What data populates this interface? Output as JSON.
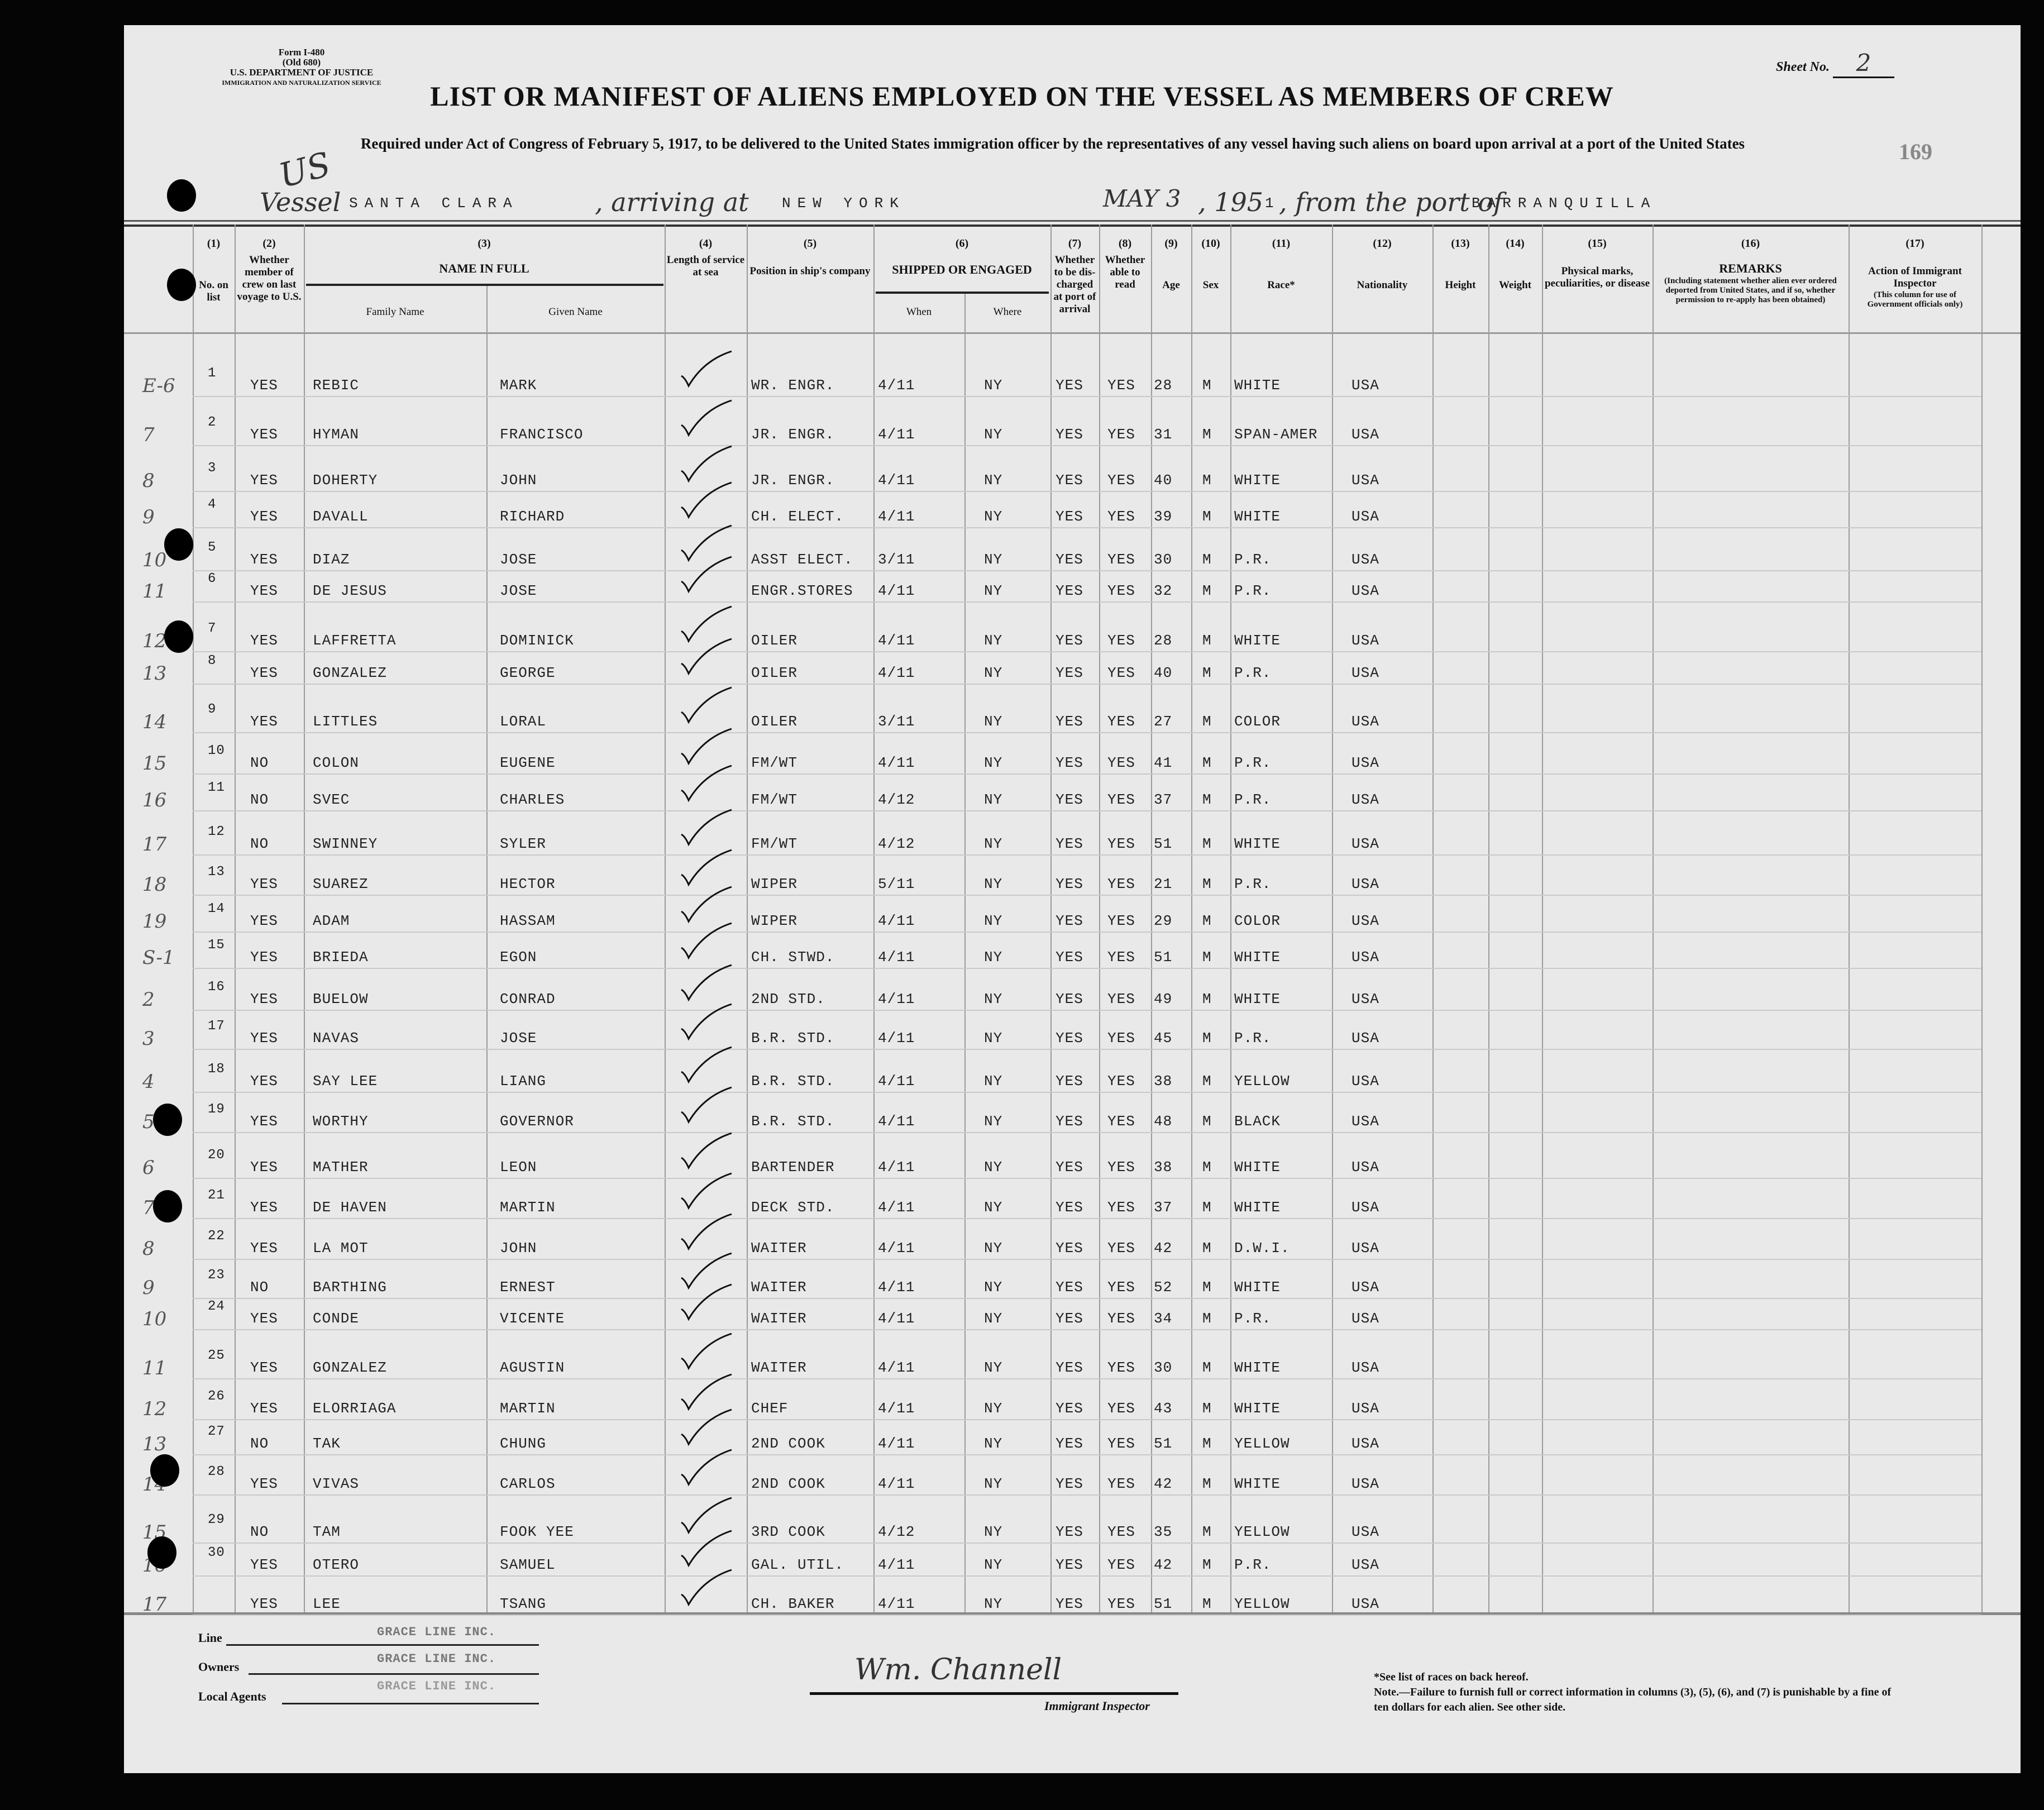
{
  "form": {
    "form_no": "Form I-480",
    "old_no": "(Old 680)",
    "department": "U.S. DEPARTMENT OF JUSTICE",
    "service": "IMMIGRATION AND NATURALIZATION SERVICE",
    "sheet_label": "Sheet No.",
    "sheet_no": "2",
    "stamp_no": "169",
    "title": "LIST OR MANIFEST OF ALIENS EMPLOYED ON THE VESSEL AS MEMBERS OF CREW",
    "subtitle": "Required under Act of Congress of February 5, 1917, to be delivered to the United States immigration officer by the representatives of any vessel having such aliens on board upon arrival at a port of the United States",
    "handwritten_us": "US"
  },
  "voyage": {
    "vessel_label": "Vessel",
    "vessel": "SANTA CLARA",
    "arriving_label": ", arriving at",
    "arriving_at": "NEW YORK",
    "date": "MAY 3",
    "year_label": ", 195",
    "year_suffix": "1",
    "from_label": ", from the port of",
    "from_port": "BARRANQUILLA"
  },
  "columns": [
    {
      "num": "(1)",
      "label": "No. on list"
    },
    {
      "num": "(2)",
      "label": "Whether member of crew on last voyage to U.S."
    },
    {
      "num": "(3)",
      "label": "NAME IN FULL",
      "sub": [
        "Family Name",
        "Given Name"
      ]
    },
    {
      "num": "(4)",
      "label": "Length of service at sea"
    },
    {
      "num": "(5)",
      "label": "Position in ship's company"
    },
    {
      "num": "(6)",
      "label": "SHIPPED OR ENGAGED",
      "sub": [
        "When",
        "Where"
      ]
    },
    {
      "num": "(7)",
      "label": "Whether to be dis-charged at port of arrival"
    },
    {
      "num": "(8)",
      "label": "Whether able to read"
    },
    {
      "num": "(9)",
      "label": "Age"
    },
    {
      "num": "(10)",
      "label": "Sex"
    },
    {
      "num": "(11)",
      "label": "Race*"
    },
    {
      "num": "(12)",
      "label": "Nationality"
    },
    {
      "num": "(13)",
      "label": "Height"
    },
    {
      "num": "(14)",
      "label": "Weight"
    },
    {
      "num": "(15)",
      "label": "Physical marks, peculiarities, or disease"
    },
    {
      "num": "(16)",
      "label": "REMARKS",
      "note": "(Including statement whether alien ever ordered deported from United States, and if so, whether permission to re-apply has been obtained)"
    },
    {
      "num": "(17)",
      "label": "Action of Immigrant Inspector",
      "note": "(This column for use of Government officials only)"
    }
  ],
  "rows": [
    {
      "margin": "E-6",
      "no": "1",
      "member": "YES",
      "family": "REBIC",
      "given": "MARK",
      "position": "WR. ENGR.",
      "when": "4/11",
      "where": "NY",
      "discharged": "YES",
      "read": "YES",
      "age": "28",
      "sex": "M",
      "race": "WHITE",
      "nationality": "USA"
    },
    {
      "margin": "7",
      "no": "2",
      "member": "YES",
      "family": "HYMAN",
      "given": "FRANCISCO",
      "position": "JR. ENGR.",
      "when": "4/11",
      "where": "NY",
      "discharged": "YES",
      "read": "YES",
      "age": "31",
      "sex": "M",
      "race": "SPAN-AMER",
      "nationality": "USA"
    },
    {
      "margin": "8",
      "no": "3",
      "member": "YES",
      "family": "DOHERTY",
      "given": "JOHN",
      "position": "JR. ENGR.",
      "when": "4/11",
      "where": "NY",
      "discharged": "YES",
      "read": "YES",
      "age": "40",
      "sex": "M",
      "race": "WHITE",
      "nationality": "USA"
    },
    {
      "margin": "9",
      "no": "4",
      "member": "YES",
      "family": "DAVALL",
      "given": "RICHARD",
      "position": "CH. ELECT.",
      "when": "4/11",
      "where": "NY",
      "discharged": "YES",
      "read": "YES",
      "age": "39",
      "sex": "M",
      "race": "WHITE",
      "nationality": "USA"
    },
    {
      "margin": "10",
      "no": "5",
      "member": "YES",
      "family": "DIAZ",
      "given": "JOSE",
      "position": "ASST ELECT.",
      "when": "3/11",
      "where": "NY",
      "discharged": "YES",
      "read": "YES",
      "age": "30",
      "sex": "M",
      "race": "P.R.",
      "nationality": "USA"
    },
    {
      "margin": "11",
      "no": "6",
      "member": "YES",
      "family": "DE JESUS",
      "given": "JOSE",
      "position": "ENGR.STORES",
      "when": "4/11",
      "where": "NY",
      "discharged": "YES",
      "read": "YES",
      "age": "32",
      "sex": "M",
      "race": "P.R.",
      "nationality": "USA"
    },
    {
      "margin": "12",
      "no": "7",
      "member": "YES",
      "family": "LAFFRETTA",
      "given": "DOMINICK",
      "position": "OILER",
      "when": "4/11",
      "where": "NY",
      "discharged": "YES",
      "read": "YES",
      "age": "28",
      "sex": "M",
      "race": "WHITE",
      "nationality": "USA"
    },
    {
      "margin": "13",
      "no": "8",
      "member": "YES",
      "family": "GONZALEZ",
      "given": "GEORGE",
      "position": "OILER",
      "when": "4/11",
      "where": "NY",
      "discharged": "YES",
      "read": "YES",
      "age": "40",
      "sex": "M",
      "race": "P.R.",
      "nationality": "USA"
    },
    {
      "margin": "14",
      "no": "9",
      "member": "YES",
      "family": "LITTLES",
      "given": "LORAL",
      "position": "OILER",
      "when": "3/11",
      "where": "NY",
      "discharged": "YES",
      "read": "YES",
      "age": "27",
      "sex": "M",
      "race": "COLOR",
      "nationality": "USA"
    },
    {
      "margin": "15",
      "no": "10",
      "member": "NO",
      "family": "COLON",
      "given": "EUGENE",
      "position": "FM/WT",
      "when": "4/11",
      "where": "NY",
      "discharged": "YES",
      "read": "YES",
      "age": "41",
      "sex": "M",
      "race": "P.R.",
      "nationality": "USA"
    },
    {
      "margin": "16",
      "no": "11",
      "member": "NO",
      "family": "SVEC",
      "given": "CHARLES",
      "position": "FM/WT",
      "when": "4/12",
      "where": "NY",
      "discharged": "YES",
      "read": "YES",
      "age": "37",
      "sex": "M",
      "race": "P.R.",
      "nationality": "USA"
    },
    {
      "margin": "17",
      "no": "12",
      "member": "NO",
      "family": "SWINNEY",
      "given": "SYLER",
      "position": "FM/WT",
      "when": "4/12",
      "where": "NY",
      "discharged": "YES",
      "read": "YES",
      "age": "51",
      "sex": "M",
      "race": "WHITE",
      "nationality": "USA"
    },
    {
      "margin": "18",
      "no": "13",
      "member": "YES",
      "family": "SUAREZ",
      "given": "HECTOR",
      "position": "WIPER",
      "when": "5/11",
      "where": "NY",
      "discharged": "YES",
      "read": "YES",
      "age": "21",
      "sex": "M",
      "race": "P.R.",
      "nationality": "USA"
    },
    {
      "margin": "19",
      "no": "14",
      "member": "YES",
      "family": "ADAM",
      "given": "HASSAM",
      "position": "WIPER",
      "when": "4/11",
      "where": "NY",
      "discharged": "YES",
      "read": "YES",
      "age": "29",
      "sex": "M",
      "race": "COLOR",
      "nationality": "USA"
    },
    {
      "margin": "S-1",
      "no": "15",
      "member": "YES",
      "family": "BRIEDA",
      "given": "EGON",
      "position": "CH. STWD.",
      "when": "4/11",
      "where": "NY",
      "discharged": "YES",
      "read": "YES",
      "age": "51",
      "sex": "M",
      "race": "WHITE",
      "nationality": "USA"
    },
    {
      "margin": "2",
      "no": "16",
      "member": "YES",
      "family": "BUELOW",
      "given": "CONRAD",
      "position": "2ND STD.",
      "when": "4/11",
      "where": "NY",
      "discharged": "YES",
      "read": "YES",
      "age": "49",
      "sex": "M",
      "race": "WHITE",
      "nationality": "USA"
    },
    {
      "margin": "3",
      "no": "17",
      "member": "YES",
      "family": "NAVAS",
      "given": "JOSE",
      "position": "B.R. STD.",
      "when": "4/11",
      "where": "NY",
      "discharged": "YES",
      "read": "YES",
      "age": "45",
      "sex": "M",
      "race": "P.R.",
      "nationality": "USA"
    },
    {
      "margin": "4",
      "no": "18",
      "member": "YES",
      "family": "SAY LEE",
      "given": "LIANG",
      "position": "B.R. STD.",
      "when": "4/11",
      "where": "NY",
      "discharged": "YES",
      "read": "YES",
      "age": "38",
      "sex": "M",
      "race": "YELLOW",
      "nationality": "USA"
    },
    {
      "margin": "5",
      "no": "19",
      "member": "YES",
      "family": "WORTHY",
      "given": "GOVERNOR",
      "position": "B.R. STD.",
      "when": "4/11",
      "where": "NY",
      "discharged": "YES",
      "read": "YES",
      "age": "48",
      "sex": "M",
      "race": "BLACK",
      "nationality": "USA"
    },
    {
      "margin": "6",
      "no": "20",
      "member": "YES",
      "family": "MATHER",
      "given": "LEON",
      "position": "BARTENDER",
      "when": "4/11",
      "where": "NY",
      "discharged": "YES",
      "read": "YES",
      "age": "38",
      "sex": "M",
      "race": "WHITE",
      "nationality": "USA"
    },
    {
      "margin": "7",
      "no": "21",
      "member": "YES",
      "family": "DE HAVEN",
      "given": "MARTIN",
      "position": "DECK STD.",
      "when": "4/11",
      "where": "NY",
      "discharged": "YES",
      "read": "YES",
      "age": "37",
      "sex": "M",
      "race": "WHITE",
      "nationality": "USA"
    },
    {
      "margin": "8",
      "no": "22",
      "member": "YES",
      "family": "LA MOT",
      "given": "JOHN",
      "position": "WAITER",
      "when": "4/11",
      "where": "NY",
      "discharged": "YES",
      "read": "YES",
      "age": "42",
      "sex": "M",
      "race": "D.W.I.",
      "nationality": "USA"
    },
    {
      "margin": "9",
      "no": "23",
      "member": "NO",
      "family": "BARTHING",
      "given": "ERNEST",
      "position": "WAITER",
      "when": "4/11",
      "where": "NY",
      "discharged": "YES",
      "read": "YES",
      "age": "52",
      "sex": "M",
      "race": "WHITE",
      "nationality": "USA"
    },
    {
      "margin": "10",
      "no": "24",
      "member": "YES",
      "family": "CONDE",
      "given": "VICENTE",
      "position": "WAITER",
      "when": "4/11",
      "where": "NY",
      "discharged": "YES",
      "read": "YES",
      "age": "34",
      "sex": "M",
      "race": "P.R.",
      "nationality": "USA"
    },
    {
      "margin": "11",
      "no": "25",
      "member": "YES",
      "family": "GONZALEZ",
      "given": "AGUSTIN",
      "position": "WAITER",
      "when": "4/11",
      "where": "NY",
      "discharged": "YES",
      "read": "YES",
      "age": "30",
      "sex": "M",
      "race": "WHITE",
      "nationality": "USA"
    },
    {
      "margin": "12",
      "no": "26",
      "member": "YES",
      "family": "ELORRIAGA",
      "given": "MARTIN",
      "position": "CHEF",
      "when": "4/11",
      "where": "NY",
      "discharged": "YES",
      "read": "YES",
      "age": "43",
      "sex": "M",
      "race": "WHITE",
      "nationality": "USA"
    },
    {
      "margin": "13",
      "no": "27",
      "member": "NO",
      "family": "TAK",
      "given": "CHUNG",
      "position": "2ND COOK",
      "when": "4/11",
      "where": "NY",
      "discharged": "YES",
      "read": "YES",
      "age": "51",
      "sex": "M",
      "race": "YELLOW",
      "nationality": "USA"
    },
    {
      "margin": "14",
      "no": "28",
      "member": "YES",
      "family": "VIVAS",
      "given": "CARLOS",
      "position": "2ND COOK",
      "when": "4/11",
      "where": "NY",
      "discharged": "YES",
      "read": "YES",
      "age": "42",
      "sex": "M",
      "race": "WHITE",
      "nationality": "USA"
    },
    {
      "margin": "15",
      "no": "29",
      "member": "NO",
      "family": "TAM",
      "given": "FOOK YEE",
      "position": "3RD COOK",
      "when": "4/12",
      "where": "NY",
      "discharged": "YES",
      "read": "YES",
      "age": "35",
      "sex": "M",
      "race": "YELLOW",
      "nationality": "USA"
    },
    {
      "margin": "16",
      "no": "30",
      "member": "YES",
      "family": "OTERO",
      "given": "SAMUEL",
      "position": "GAL. UTIL.",
      "when": "4/11",
      "where": "NY",
      "discharged": "YES",
      "read": "YES",
      "age": "42",
      "sex": "M",
      "race": "P.R.",
      "nationality": "USA"
    },
    {
      "margin": "17",
      "no": "",
      "member": "YES",
      "family": "LEE",
      "given": "TSANG",
      "position": "CH. BAKER",
      "when": "4/11",
      "where": "NY",
      "discharged": "YES",
      "read": "YES",
      "age": "51",
      "sex": "M",
      "race": "YELLOW",
      "nationality": "USA"
    }
  ],
  "footer": {
    "line_label": "Line",
    "line_value": "GRACE LINE INC.",
    "owners_label": "Owners",
    "owners_value": "GRACE LINE INC.",
    "agents_label": "Local Agents",
    "agents_value": "GRACE LINE INC.",
    "signature": "Wm. Channell",
    "inspector_label": "Immigrant Inspector",
    "races_note": "*See list of races on back hereof.",
    "note": "Note.—Failure to furnish full or correct information in columns (3), (5), (6), and (7) is punishable by a fine of ten dollars for each alien. See other side."
  }
}
